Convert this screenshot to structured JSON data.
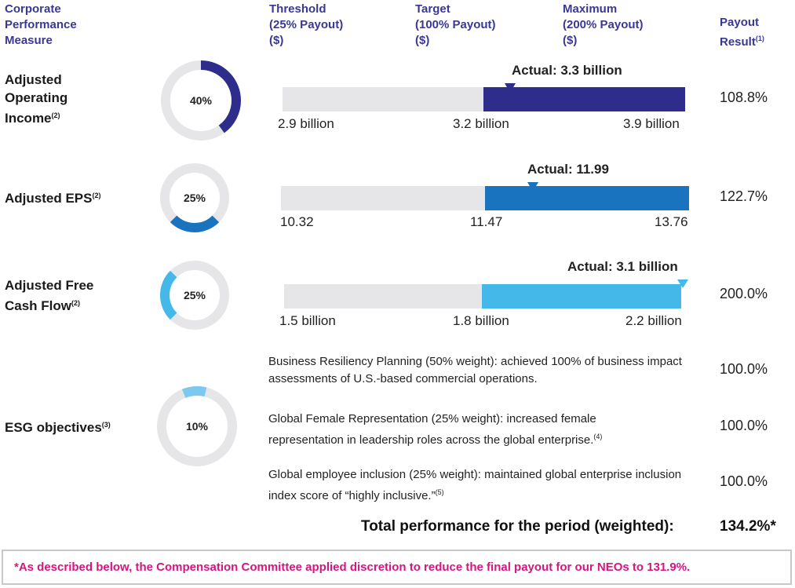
{
  "headers": {
    "measure": "Corporate\nPerformance\nMeasure",
    "threshold": "Threshold\n(25% Payout)\n($)",
    "target": "Target\n(100% Payout)\n($)",
    "maximum": "Maximum\n(200% Payout)\n($)",
    "payout": "Payout\nResult",
    "payout_note": "(1)"
  },
  "colors": {
    "header": "#3a3896",
    "gray": "#e6e6e8",
    "note": "#d6157f"
  },
  "measures": [
    {
      "name": "Adjusted Operating Income",
      "note": "(2)",
      "weight": "40%",
      "weight_value": 0.4,
      "color": "#2e2d8c",
      "threshold": "2.9 billion",
      "target": "3.2 billion",
      "maximum": "3.9 billion",
      "actual": "Actual: 3.3 billion",
      "actual_value": 3.3,
      "threshold_value": 2.9,
      "target_value": 3.2,
      "maximum_value": 3.9,
      "payout": "108.8%"
    },
    {
      "name": "Adjusted EPS",
      "note": "(2)",
      "weight": "25%",
      "weight_value": 0.25,
      "color": "#1a73be",
      "threshold": "10.32",
      "target": "11.47",
      "maximum": "13.76",
      "actual": "Actual: 11.99",
      "actual_value": 11.99,
      "threshold_value": 10.32,
      "target_value": 11.47,
      "maximum_value": 13.76,
      "payout": "122.7%"
    },
    {
      "name": "Adjusted Free Cash Flow",
      "note": "(2)",
      "weight": "25%",
      "weight_value": 0.25,
      "color": "#45b8ea",
      "threshold": "1.5 billion",
      "target": "1.8 billion",
      "maximum": "2.2 billion",
      "actual": "Actual: 3.1 billion",
      "actual_value": 3.1,
      "threshold_value": 1.5,
      "target_value": 1.8,
      "maximum_value": 2.2,
      "payout": "200.0%"
    }
  ],
  "esg": {
    "name": "ESG objectives",
    "note": "(3)",
    "weight": "10%",
    "weight_value": 0.1,
    "color": "#7cc8ef",
    "items": [
      {
        "text": "Business Resiliency Planning (50% weight): achieved 100% of business impact assessments of U.S.-based commercial operations.",
        "note": "",
        "payout": "100.0%"
      },
      {
        "text": "Global Female Representation (25% weight): increased female representation in leadership roles across the global enterprise.",
        "note": "(4)",
        "payout": "100.0%"
      },
      {
        "text": "Global employee inclusion (25% weight): maintained global enterprise inclusion index score of “highly inclusive.”",
        "note": "(5)",
        "payout": "100.0%"
      }
    ]
  },
  "total": {
    "label": "Total performance for the period (weighted):",
    "value": "134.2%*"
  },
  "footnote": "*As described below, the Compensation Committee applied discretion to reduce the final payout for our NEOs to 131.9%."
}
